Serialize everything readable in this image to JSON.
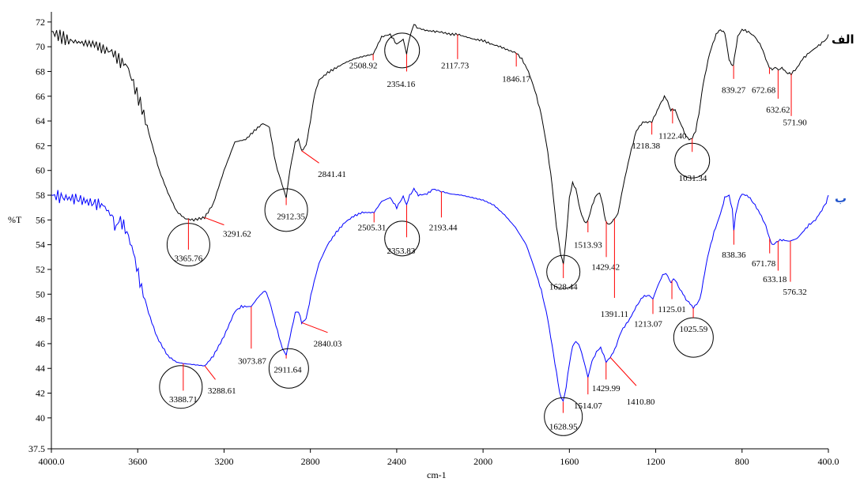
{
  "chart_data": {
    "type": "line",
    "xlabel": "cm-1",
    "ylabel": "%T",
    "xlim": [
      4000,
      400
    ],
    "ylim": [
      37.5,
      72.5
    ],
    "x_ticks": [
      "4000.0",
      "3600",
      "3200",
      "2800",
      "2400",
      "2000",
      "1600",
      "1200",
      "800",
      "400.0"
    ],
    "y_ticks": [
      "37.5",
      "40",
      "42",
      "44",
      "46",
      "48",
      "50",
      "52",
      "54",
      "56",
      "58",
      "60",
      "62",
      "64",
      "66",
      "68",
      "70",
      "72"
    ],
    "series": [
      {
        "name": "الف",
        "color": "#000000",
        "points": [
          [
            4000,
            71.2
          ],
          [
            3920,
            70.5
          ],
          [
            3850,
            70.3
          ],
          [
            3800,
            70.2
          ],
          [
            3760,
            69.8
          ],
          [
            3720,
            69.6
          ],
          [
            3680,
            68.8
          ],
          [
            3650,
            68.5
          ],
          [
            3620,
            67.0
          ],
          [
            3580,
            65.0
          ],
          [
            3540,
            62.5
          ],
          [
            3500,
            60.0
          ],
          [
            3460,
            58.2
          ],
          [
            3420,
            56.7
          ],
          [
            3380,
            56.1
          ],
          [
            3340,
            56.0
          ],
          [
            3290,
            56.2
          ],
          [
            3250,
            57.3
          ],
          [
            3200,
            60.0
          ],
          [
            3150,
            62.3
          ],
          [
            3100,
            62.5
          ],
          [
            3060,
            63.2
          ],
          [
            3020,
            63.8
          ],
          [
            2990,
            63.5
          ],
          [
            2960,
            60.5
          ],
          [
            2930,
            58.8
          ],
          [
            2912,
            57.8
          ],
          [
            2895,
            60.0
          ],
          [
            2870,
            62.3
          ],
          [
            2855,
            62.5
          ],
          [
            2841,
            61.6
          ],
          [
            2820,
            62.0
          ],
          [
            2800,
            64.0
          ],
          [
            2780,
            66.2
          ],
          [
            2760,
            67.3
          ],
          [
            2720,
            67.9
          ],
          [
            2680,
            68.3
          ],
          [
            2640,
            68.7
          ],
          [
            2600,
            69.0
          ],
          [
            2560,
            69.2
          ],
          [
            2509,
            69.4
          ],
          [
            2470,
            70.8
          ],
          [
            2430,
            71.0
          ],
          [
            2400,
            70.2
          ],
          [
            2370,
            70.6
          ],
          [
            2354,
            69.4
          ],
          [
            2340,
            70.8
          ],
          [
            2320,
            71.8
          ],
          [
            2300,
            71.5
          ],
          [
            2260,
            71.3
          ],
          [
            2200,
            71.2
          ],
          [
            2150,
            71.0
          ],
          [
            2118,
            71.0
          ],
          [
            2080,
            70.8
          ],
          [
            2040,
            70.6
          ],
          [
            2000,
            70.5
          ],
          [
            1960,
            70.2
          ],
          [
            1920,
            70.0
          ],
          [
            1880,
            69.7
          ],
          [
            1846,
            69.5
          ],
          [
            1820,
            69.0
          ],
          [
            1790,
            68.0
          ],
          [
            1760,
            66.5
          ],
          [
            1730,
            64.5
          ],
          [
            1700,
            61.5
          ],
          [
            1680,
            58.8
          ],
          [
            1660,
            55.5
          ],
          [
            1640,
            53.2
          ],
          [
            1628,
            52.5
          ],
          [
            1615,
            54.5
          ],
          [
            1600,
            57.8
          ],
          [
            1585,
            59.0
          ],
          [
            1570,
            58.5
          ],
          [
            1550,
            56.8
          ],
          [
            1530,
            55.8
          ],
          [
            1514,
            55.9
          ],
          [
            1495,
            57.2
          ],
          [
            1475,
            58.0
          ],
          [
            1460,
            58.2
          ],
          [
            1445,
            57.2
          ],
          [
            1432,
            55.9
          ],
          [
            1415,
            55.6
          ],
          [
            1400,
            55.9
          ],
          [
            1391,
            56.1
          ],
          [
            1375,
            56.5
          ],
          [
            1350,
            58.8
          ],
          [
            1320,
            61.2
          ],
          [
            1290,
            63.2
          ],
          [
            1260,
            63.9
          ],
          [
            1230,
            63.9
          ],
          [
            1218,
            63.9
          ],
          [
            1200,
            64.6
          ],
          [
            1180,
            65.3
          ],
          [
            1160,
            66.0
          ],
          [
            1145,
            65.6
          ],
          [
            1130,
            64.8
          ],
          [
            1122,
            65.0
          ],
          [
            1110,
            64.9
          ],
          [
            1095,
            64.2
          ],
          [
            1080,
            63.6
          ],
          [
            1060,
            62.8
          ],
          [
            1045,
            62.5
          ],
          [
            1031,
            62.6
          ],
          [
            1015,
            63.2
          ],
          [
            1000,
            64.6
          ],
          [
            980,
            67.0
          ],
          [
            950,
            69.5
          ],
          [
            920,
            71.0
          ],
          [
            900,
            71.4
          ],
          [
            880,
            71.1
          ],
          [
            860,
            69.0
          ],
          [
            850,
            68.6
          ],
          [
            840,
            68.5
          ],
          [
            832,
            69.5
          ],
          [
            820,
            70.8
          ],
          [
            800,
            71.4
          ],
          [
            770,
            71.2
          ],
          [
            740,
            70.8
          ],
          [
            710,
            70.0
          ],
          [
            690,
            69.0
          ],
          [
            673,
            68.3
          ],
          [
            660,
            68.2
          ],
          [
            640,
            68.3
          ],
          [
            633,
            68.1
          ],
          [
            615,
            68.3
          ],
          [
            595,
            67.9
          ],
          [
            572,
            67.8
          ],
          [
            545,
            68.3
          ],
          [
            520,
            69.0
          ],
          [
            490,
            69.5
          ],
          [
            460,
            69.9
          ],
          [
            430,
            70.3
          ],
          [
            410,
            70.6
          ],
          [
            400,
            71.0
          ]
        ]
      },
      {
        "name": "ب",
        "color": "#0000ff",
        "points": [
          [
            4000,
            58.0
          ],
          [
            3940,
            57.8
          ],
          [
            3880,
            57.7
          ],
          [
            3820,
            57.4
          ],
          [
            3760,
            57.2
          ],
          [
            3720,
            56.3
          ],
          [
            3700,
            55.4
          ],
          [
            3680,
            56.0
          ],
          [
            3650,
            55.0
          ],
          [
            3620,
            53.4
          ],
          [
            3590,
            51.0
          ],
          [
            3550,
            48.5
          ],
          [
            3510,
            46.5
          ],
          [
            3460,
            45.0
          ],
          [
            3420,
            44.5
          ],
          [
            3389,
            44.4
          ],
          [
            3340,
            44.3
          ],
          [
            3289,
            44.2
          ],
          [
            3250,
            45.0
          ],
          [
            3200,
            46.6
          ],
          [
            3150,
            48.6
          ],
          [
            3120,
            49.0
          ],
          [
            3074,
            49.0
          ],
          [
            3040,
            49.8
          ],
          [
            3010,
            50.3
          ],
          [
            2990,
            49.5
          ],
          [
            2960,
            47.5
          ],
          [
            2930,
            45.6
          ],
          [
            2912,
            45.1
          ],
          [
            2895,
            46.5
          ],
          [
            2870,
            48.5
          ],
          [
            2855,
            48.6
          ],
          [
            2840,
            47.7
          ],
          [
            2820,
            48.0
          ],
          [
            2790,
            50.5
          ],
          [
            2760,
            52.5
          ],
          [
            2720,
            54.0
          ],
          [
            2680,
            55.0
          ],
          [
            2640,
            55.8
          ],
          [
            2600,
            56.3
          ],
          [
            2560,
            56.6
          ],
          [
            2505,
            56.6
          ],
          [
            2470,
            57.5
          ],
          [
            2430,
            57.8
          ],
          [
            2400,
            57.0
          ],
          [
            2370,
            57.9
          ],
          [
            2354,
            57.2
          ],
          [
            2340,
            58.0
          ],
          [
            2320,
            58.5
          ],
          [
            2300,
            58.0
          ],
          [
            2260,
            58.1
          ],
          [
            2230,
            58.5
          ],
          [
            2193,
            58.3
          ],
          [
            2150,
            58.1
          ],
          [
            2100,
            58.0
          ],
          [
            2050,
            57.8
          ],
          [
            2000,
            57.6
          ],
          [
            1950,
            57.2
          ],
          [
            1900,
            56.4
          ],
          [
            1850,
            55.4
          ],
          [
            1800,
            54.0
          ],
          [
            1760,
            52.0
          ],
          [
            1730,
            50.3
          ],
          [
            1700,
            48.0
          ],
          [
            1680,
            45.8
          ],
          [
            1660,
            43.7
          ],
          [
            1645,
            42.0
          ],
          [
            1629,
            41.3
          ],
          [
            1615,
            42.5
          ],
          [
            1600,
            44.4
          ],
          [
            1585,
            45.8
          ],
          [
            1570,
            46.2
          ],
          [
            1550,
            45.7
          ],
          [
            1530,
            44.4
          ],
          [
            1514,
            43.3
          ],
          [
            1495,
            44.6
          ],
          [
            1475,
            45.3
          ],
          [
            1455,
            45.7
          ],
          [
            1440,
            45.0
          ],
          [
            1430,
            44.5
          ],
          [
            1411,
            44.9
          ],
          [
            1390,
            45.5
          ],
          [
            1360,
            47.0
          ],
          [
            1320,
            48.0
          ],
          [
            1290,
            49.0
          ],
          [
            1260,
            49.8
          ],
          [
            1230,
            49.9
          ],
          [
            1213,
            49.6
          ],
          [
            1195,
            50.5
          ],
          [
            1175,
            51.3
          ],
          [
            1160,
            51.7
          ],
          [
            1145,
            51.5
          ],
          [
            1130,
            50.9
          ],
          [
            1125,
            51.1
          ],
          [
            1110,
            51.2
          ],
          [
            1095,
            50.6
          ],
          [
            1080,
            50.2
          ],
          [
            1060,
            49.6
          ],
          [
            1040,
            49.2
          ],
          [
            1026,
            48.9
          ],
          [
            1010,
            49.2
          ],
          [
            995,
            49.6
          ],
          [
            980,
            51.0
          ],
          [
            960,
            53.0
          ],
          [
            930,
            55.0
          ],
          [
            900,
            56.5
          ],
          [
            880,
            57.8
          ],
          [
            860,
            58.0
          ],
          [
            845,
            56.8
          ],
          [
            838,
            55.2
          ],
          [
            830,
            56.4
          ],
          [
            815,
            57.6
          ],
          [
            800,
            58.1
          ],
          [
            770,
            57.9
          ],
          [
            740,
            57.2
          ],
          [
            710,
            56.3
          ],
          [
            690,
            55.5
          ],
          [
            672,
            54.5
          ],
          [
            660,
            54.0
          ],
          [
            645,
            54.1
          ],
          [
            633,
            54.3
          ],
          [
            615,
            54.4
          ],
          [
            595,
            54.3
          ],
          [
            576,
            54.3
          ],
          [
            545,
            54.5
          ],
          [
            520,
            55.0
          ],
          [
            490,
            55.6
          ],
          [
            460,
            56.0
          ],
          [
            430,
            56.8
          ],
          [
            410,
            57.4
          ],
          [
            400,
            58.0
          ]
        ]
      }
    ],
    "peak_labels": {
      "alef": [
        "3365.76",
        "3291.62",
        "2912.35",
        "2841.41",
        "2508.92",
        "2354.16",
        "2117.73",
        "1846.17",
        "1628.44",
        "1513.93",
        "1429.42",
        "1391.11",
        "1218.38",
        "1122.40",
        "1031.34",
        "839.27",
        "672.68",
        "632.62",
        "571.90"
      ],
      "be": [
        "3388.71",
        "3288.61",
        "3073.87",
        "2911.64",
        "2840.03",
        "2505.31",
        "2353.83",
        "2193.44",
        "1628.95",
        "1514.07",
        "1429.99",
        "1410.80",
        "1213.07",
        "1125.01",
        "1025.59",
        "838.36",
        "671.78",
        "633.18",
        "576.32"
      ]
    }
  }
}
